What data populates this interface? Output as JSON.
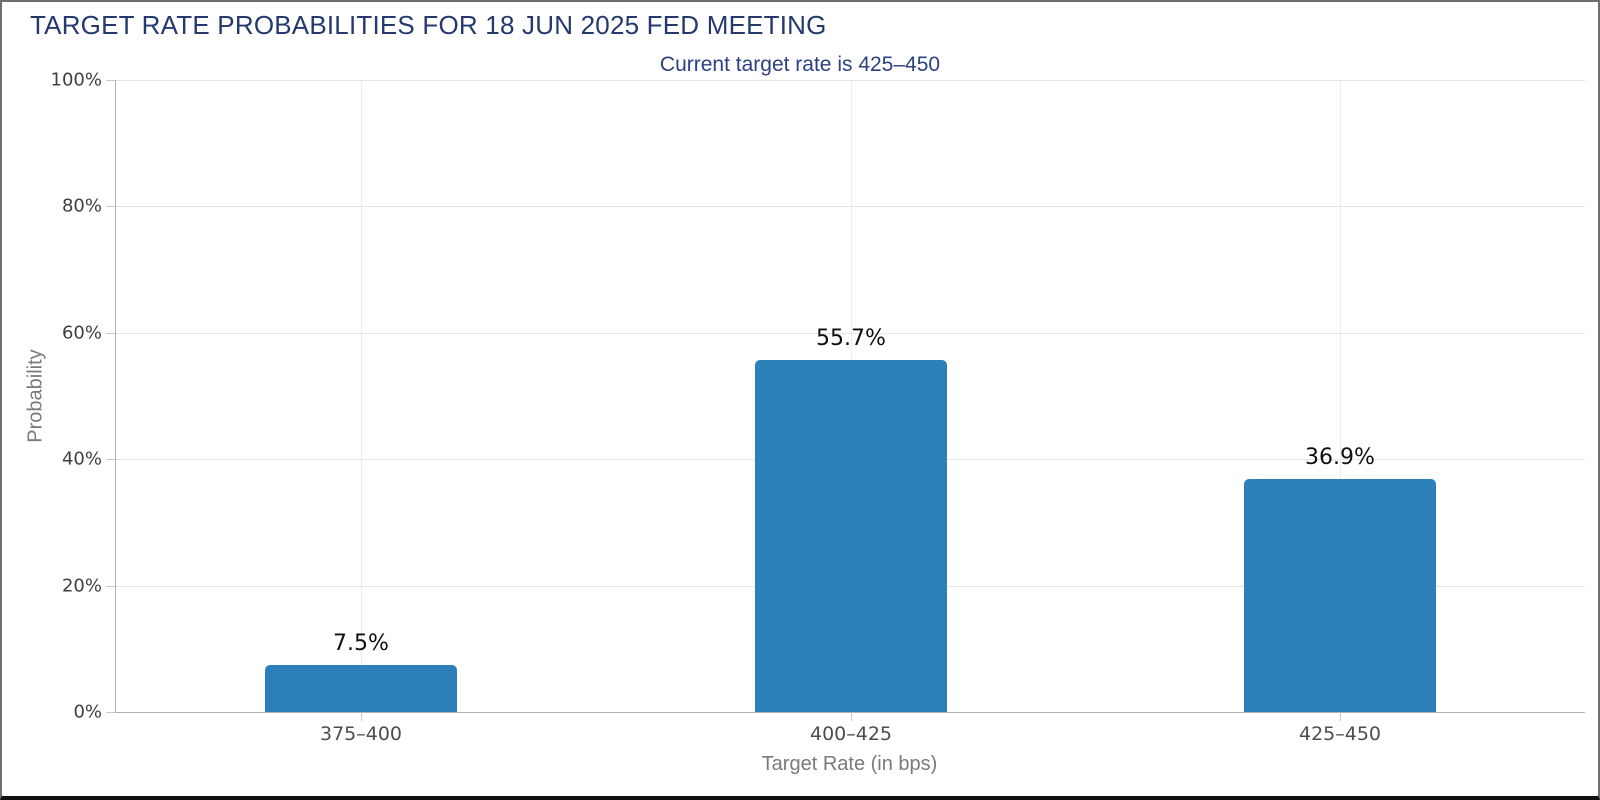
{
  "chart_data": {
    "type": "bar",
    "title": "TARGET RATE PROBABILITIES FOR 18 JUN 2025 FED MEETING",
    "subtitle": "Current target rate is 425–450",
    "categories": [
      "375–400",
      "400–425",
      "425–450"
    ],
    "values": [
      7.5,
      55.7,
      36.9
    ],
    "value_labels": [
      "7.5%",
      "55.7%",
      "36.9%"
    ],
    "xlabel": "Target Rate (in bps)",
    "ylabel": "Probability",
    "ylim": [
      0,
      100
    ],
    "yticks": [
      0,
      20,
      40,
      60,
      80,
      100
    ],
    "ytick_labels": [
      "0%",
      "20%",
      "40%",
      "60%",
      "80%",
      "100%"
    ],
    "grid": true,
    "legend": "none",
    "colors": {
      "bar": "#2B80B9",
      "title": "#25396E",
      "subtitle": "#2B4180",
      "axis_line": "#B2B2B2",
      "gridline": "#E4E4E4"
    }
  }
}
